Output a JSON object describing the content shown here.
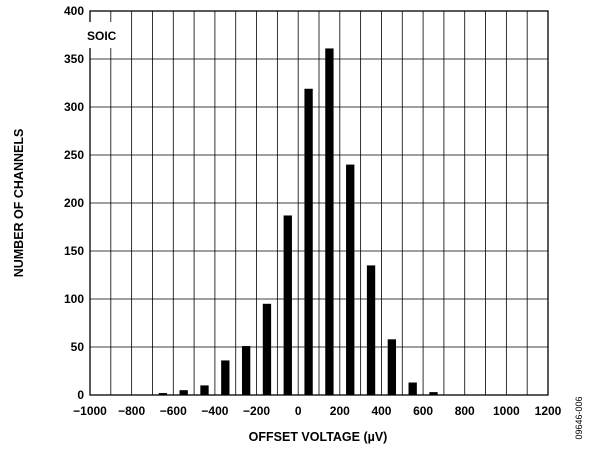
{
  "chart_data": {
    "type": "bar",
    "title": "",
    "xlabel": "OFFSET VOLTAGE (µV)",
    "ylabel": "NUMBER OF CHANNELS",
    "xlim": [
      -1000,
      1200
    ],
    "ylim": [
      0,
      400
    ],
    "x_ticks": [
      "−1000",
      "−800",
      "−600",
      "−400",
      "−200",
      "0",
      "200",
      "400",
      "600",
      "800",
      "1000",
      "1200"
    ],
    "x_tick_values": [
      -1000,
      -800,
      -600,
      -400,
      -200,
      0,
      200,
      400,
      600,
      800,
      1000,
      1200
    ],
    "y_ticks": [
      "0",
      "50",
      "100",
      "150",
      "200",
      "250",
      "300",
      "350",
      "400"
    ],
    "y_tick_values": [
      0,
      50,
      100,
      150,
      200,
      250,
      300,
      350,
      400
    ],
    "x_gridlines": [
      -1000,
      -900,
      -800,
      -700,
      -600,
      -500,
      -400,
      -300,
      -200,
      -100,
      0,
      100,
      200,
      300,
      400,
      500,
      600,
      700,
      800,
      900,
      1000,
      1100,
      1200
    ],
    "grid": true,
    "annotation": "SOIC",
    "bar_width": 40,
    "bars": [
      {
        "x": -650,
        "value": 2
      },
      {
        "x": -550,
        "value": 5
      },
      {
        "x": -450,
        "value": 10
      },
      {
        "x": -350,
        "value": 36
      },
      {
        "x": -250,
        "value": 51
      },
      {
        "x": -150,
        "value": 95
      },
      {
        "x": -50,
        "value": 187
      },
      {
        "x": 50,
        "value": 319
      },
      {
        "x": 150,
        "value": 361
      },
      {
        "x": 250,
        "value": 240
      },
      {
        "x": 350,
        "value": 135
      },
      {
        "x": 450,
        "value": 58
      },
      {
        "x": 550,
        "value": 13
      },
      {
        "x": 650,
        "value": 3
      }
    ],
    "bar_color": "#000000"
  },
  "figure_id": "09646-006"
}
